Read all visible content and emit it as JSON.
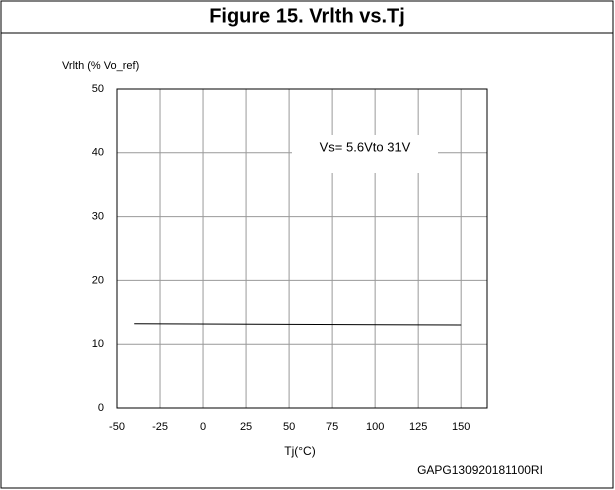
{
  "chart_data": {
    "type": "line",
    "title": "Figure 15. Vrlth vs.Tj",
    "y_label": "Vrlth (% Vo_ref)",
    "x_label": "Tj(°C)",
    "annotation": "Vs= 5.6Vto 31V",
    "code": "GAPG130920181100RI",
    "x": [
      -40,
      150
    ],
    "series": [
      {
        "name": "Vrlth",
        "color": "#000000",
        "values": [
          13.2,
          13.0
        ]
      }
    ],
    "xlim": [
      -50,
      165
    ],
    "xticks": [
      -50,
      -25,
      0,
      25,
      50,
      75,
      100,
      125,
      150
    ],
    "ylim": [
      0,
      50
    ],
    "yticks": [
      0,
      10,
      20,
      30,
      40,
      50
    ],
    "grid": true
  }
}
